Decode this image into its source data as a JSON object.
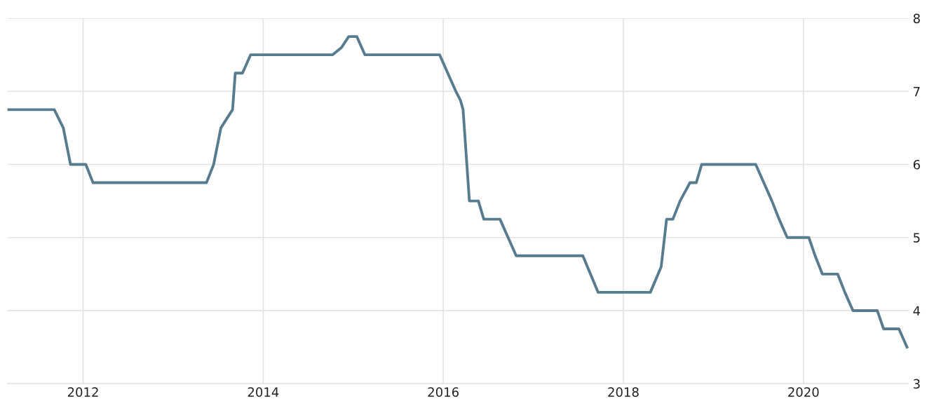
{
  "chart_data": {
    "type": "line",
    "x": [
      2011.16,
      2011.68,
      2011.78,
      2011.86,
      2012.03,
      2012.11,
      2013.37,
      2013.45,
      2013.53,
      2013.66,
      2013.69,
      2013.77,
      2013.86,
      2014.77,
      2014.87,
      2014.95,
      2015.04,
      2015.13,
      2015.96,
      2016.05,
      2016.14,
      2016.19,
      2016.22,
      2016.29,
      2016.39,
      2016.45,
      2016.63,
      2016.72,
      2016.81,
      2017.55,
      2017.72,
      2018.3,
      2018.42,
      2018.48,
      2018.55,
      2018.63,
      2018.74,
      2018.81,
      2018.87,
      2019.47,
      2019.56,
      2019.65,
      2019.73,
      2019.82,
      2020.06,
      2020.13,
      2020.21,
      2020.38,
      2020.46,
      2020.55,
      2020.82,
      2020.89,
      2021.06,
      2021.15
    ],
    "series": [
      {
        "color": "#587c8f",
        "values": [
          6.75,
          6.75,
          6.5,
          6.0,
          6.0,
          5.75,
          5.75,
          6.0,
          6.5,
          6.75,
          7.25,
          7.25,
          7.5,
          7.5,
          7.6,
          7.75,
          7.75,
          7.5,
          7.5,
          7.25,
          7.0,
          6.88,
          6.75,
          5.5,
          5.5,
          5.25,
          5.25,
          5.0,
          4.75,
          4.75,
          4.25,
          4.25,
          4.6,
          5.25,
          5.25,
          5.5,
          5.75,
          5.75,
          6.0,
          6.0,
          5.75,
          5.5,
          5.25,
          5.0,
          5.0,
          4.75,
          4.5,
          4.5,
          4.25,
          4.0,
          4.0,
          3.75,
          3.75,
          3.5
        ]
      }
    ],
    "xlim": [
      2011.16,
      2021.17
    ],
    "xticks": [
      2012,
      2014,
      2016,
      2018,
      2020
    ],
    "ylim": [
      3,
      8
    ],
    "yticks": [
      3,
      4,
      5,
      6,
      7,
      8
    ],
    "grid": true,
    "marker": "none",
    "line_style": "solid"
  }
}
